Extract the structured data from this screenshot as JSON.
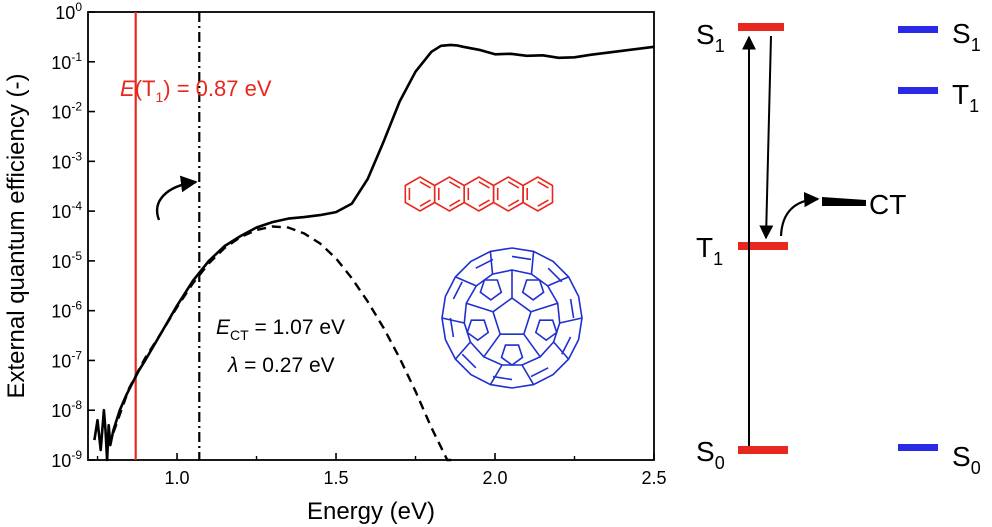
{
  "chart_data": {
    "type": "line",
    "ylabel": "External quantum efficiency (-)",
    "xlabel": "Energy (eV)",
    "x_ticks": [
      "1.0",
      "1.5",
      "2.0",
      "2.5"
    ],
    "y_ticks_exp": [
      "0",
      "-1",
      "-2",
      "-3",
      "-4",
      "-5",
      "-6",
      "-7",
      "-8",
      "-9"
    ],
    "y_tick_base": "10",
    "xlim": [
      0.72,
      2.5
    ],
    "ylim_log10": [
      -9,
      0
    ],
    "y_scale": "log",
    "series": [
      {
        "style": "solid",
        "color": "#000000",
        "x": [
          0.74,
          0.75,
          0.76,
          0.77,
          0.775,
          0.78,
          0.785,
          0.79,
          0.8,
          0.82,
          0.84,
          0.86,
          0.88,
          0.9,
          0.95,
          1.0,
          1.05,
          1.1,
          1.15,
          1.2,
          1.25,
          1.3,
          1.35,
          1.4,
          1.45,
          1.5,
          1.55,
          1.6,
          1.65,
          1.7,
          1.75,
          1.8,
          1.83,
          1.86,
          1.88,
          1.9,
          1.95,
          2.0,
          2.05,
          2.1,
          2.15,
          2.2,
          2.25,
          2.3,
          2.35,
          2.4,
          2.45,
          2.5
        ],
        "log10_eqe": [
          -8.6,
          -8.2,
          -8.8,
          -8.0,
          -8.4,
          -9.1,
          -8.3,
          -8.7,
          -8.4,
          -8.0,
          -7.7,
          -7.45,
          -7.2,
          -7.0,
          -6.45,
          -5.9,
          -5.4,
          -5.0,
          -4.7,
          -4.5,
          -4.33,
          -4.22,
          -4.15,
          -4.12,
          -4.08,
          -4.02,
          -3.85,
          -3.35,
          -2.6,
          -1.8,
          -1.2,
          -0.8,
          -0.68,
          -0.66,
          -0.67,
          -0.7,
          -0.76,
          -0.85,
          -0.84,
          -0.88,
          -0.87,
          -0.92,
          -0.91,
          -0.86,
          -0.82,
          -0.78,
          -0.74,
          -0.7
        ]
      },
      {
        "style": "dashed",
        "color": "#000000",
        "x": [
          0.8,
          0.85,
          0.9,
          0.95,
          1.0,
          1.05,
          1.1,
          1.15,
          1.2,
          1.25,
          1.3,
          1.35,
          1.4,
          1.45,
          1.5,
          1.55,
          1.6,
          1.65,
          1.7,
          1.75,
          1.8,
          1.85,
          1.87
        ],
        "log10_eqe": [
          -8.45,
          -7.55,
          -6.95,
          -6.45,
          -5.93,
          -5.45,
          -5.05,
          -4.74,
          -4.52,
          -4.38,
          -4.31,
          -4.33,
          -4.45,
          -4.65,
          -4.95,
          -5.35,
          -5.82,
          -6.35,
          -6.95,
          -7.62,
          -8.35,
          -9.0,
          -9.3
        ]
      }
    ],
    "vlines": [
      {
        "x": 0.87,
        "color": "#e8281e",
        "style": "solid"
      },
      {
        "x": 1.07,
        "color": "#000000",
        "style": "dashdot"
      }
    ],
    "annotations": {
      "t1_italic": "E",
      "t1_open": "(T",
      "t1_sub": "1",
      "t1_rest": ") = 0.87 eV",
      "ect_italic": "E",
      "ect_sub": "CT",
      "ect_rest": " = 1.07 eV",
      "lambda_symbol": "λ",
      "lambda_rest": " = 0.27 eV"
    }
  },
  "energy_diagram": {
    "red_levels": [
      {
        "base": "S",
        "sub": "1"
      },
      {
        "base": "T",
        "sub": "1"
      },
      {
        "base": "S",
        "sub": "0"
      }
    ],
    "blue_levels": [
      {
        "base": "S",
        "sub": "1"
      },
      {
        "base": "T",
        "sub": "1"
      },
      {
        "base": "S",
        "sub": "0"
      }
    ],
    "ct_label": "CT",
    "colors": {
      "red": "#e8281e",
      "blue": "#2a2ae6",
      "black": "#000000"
    }
  },
  "molecules": {
    "acene_color": "#e8281e",
    "fullerene_color": "#1f2fd0"
  }
}
